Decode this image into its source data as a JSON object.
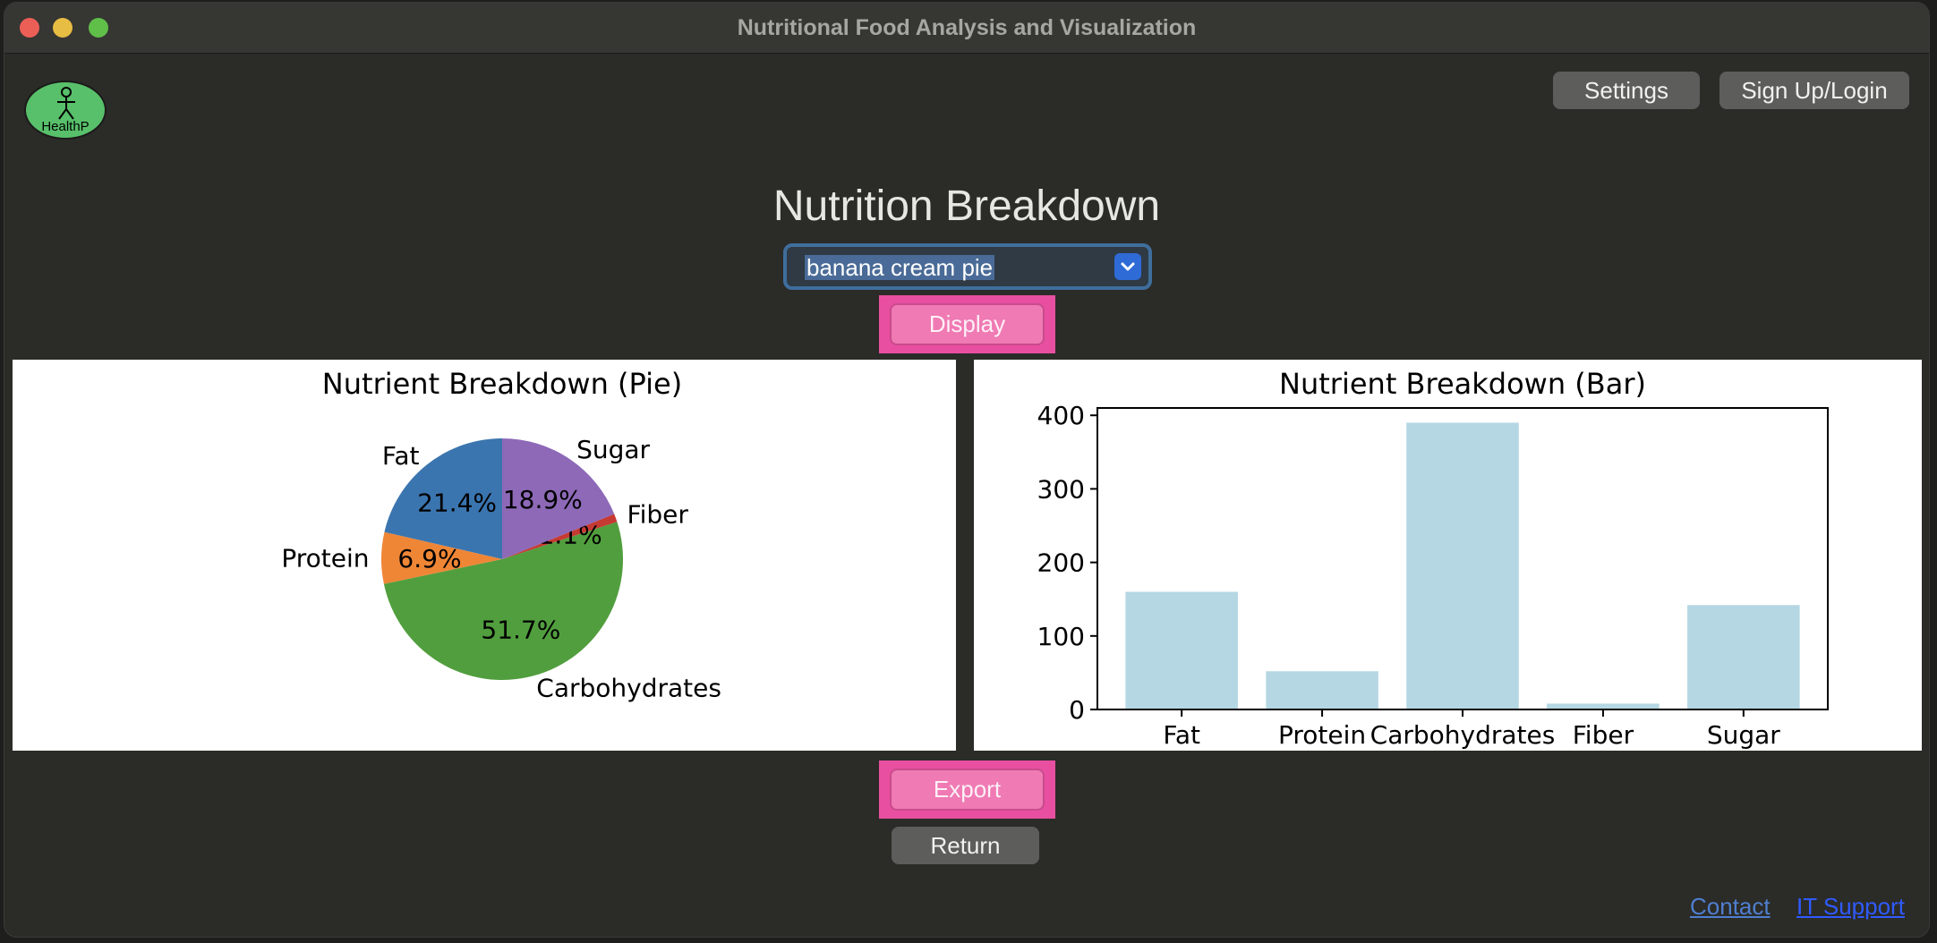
{
  "window": {
    "title": "Nutritional Food Analysis and Visualization"
  },
  "logo": {
    "text": "HealthP"
  },
  "header": {
    "settings_label": "Settings",
    "login_label": "Sign Up/Login"
  },
  "main": {
    "heading": "Nutrition Breakdown",
    "selected_food": "banana cream pie",
    "display_label": "Display",
    "export_label": "Export",
    "return_label": "Return"
  },
  "footer": {
    "contact_label": "Contact",
    "support_label": "IT Support"
  },
  "colors": {
    "accent_pink": "#f07ab3",
    "pie": [
      "#3b75af",
      "#ef8636",
      "#519e3e",
      "#c53a32",
      "#8d69b8"
    ],
    "bar": "#b5d7e3"
  },
  "chart_data": [
    {
      "type": "pie",
      "title": "Nutrient Breakdown (Pie)",
      "categories": [
        "Fat",
        "Protein",
        "Carbohydrates",
        "Fiber",
        "Sugar"
      ],
      "values": [
        21.4,
        6.9,
        51.7,
        1.1,
        18.9
      ],
      "percent_labels": [
        "21.4%",
        "6.9%",
        "51.7%",
        "1.1%",
        "18.9%"
      ]
    },
    {
      "type": "bar",
      "title": "Nutrient Breakdown (Bar)",
      "categories": [
        "Fat",
        "Protein",
        "Carbohydrates",
        "Fiber",
        "Sugar"
      ],
      "values": [
        160,
        52,
        390,
        8,
        142
      ],
      "ylim": [
        0,
        410
      ],
      "yticks": [
        0,
        100,
        200,
        300,
        400
      ],
      "grid": false
    }
  ]
}
